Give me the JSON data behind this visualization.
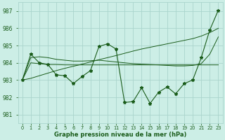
{
  "bg_color": "#cceee6",
  "line_color": "#1a5c1a",
  "grid_color": "#aad4cc",
  "xlabel": "Graphe pression niveau de la mer (hPa)",
  "ylim": [
    980.5,
    987.5
  ],
  "xlim": [
    -0.5,
    23.5
  ],
  "yticks": [
    981,
    982,
    983,
    984,
    985,
    986,
    987
  ],
  "xticks": [
    0,
    1,
    2,
    3,
    4,
    5,
    6,
    7,
    8,
    9,
    10,
    11,
    12,
    13,
    14,
    15,
    16,
    17,
    18,
    19,
    20,
    21,
    22,
    23
  ],
  "xtick_labels": [
    "0",
    "1",
    "2",
    "3",
    "4",
    "5",
    "6",
    "7",
    "8",
    "9",
    "10",
    "11",
    "12",
    "13",
    "14",
    "15",
    "16",
    "17",
    "18",
    "19",
    "20",
    "21",
    "22",
    "23"
  ],
  "main_y": [
    983.0,
    984.5,
    984.0,
    983.9,
    983.3,
    983.25,
    982.8,
    983.2,
    983.55,
    984.95,
    985.1,
    984.8,
    981.7,
    981.75,
    982.55,
    981.65,
    982.3,
    982.6,
    982.2,
    982.8,
    983.0,
    984.3,
    985.9,
    987.05
  ],
  "flat_line": [
    983.0,
    984.0,
    983.95,
    983.9,
    983.9,
    983.88,
    983.88,
    983.88,
    983.88,
    983.88,
    983.88,
    983.88,
    983.88,
    983.88,
    983.88,
    983.88,
    983.88,
    983.88,
    983.88,
    983.88,
    983.88,
    983.88,
    983.88,
    983.88
  ],
  "rising_line": [
    983.0,
    983.1,
    983.25,
    983.4,
    983.55,
    983.68,
    983.8,
    983.92,
    984.05,
    984.18,
    984.3,
    984.42,
    984.55,
    984.68,
    984.8,
    984.9,
    985.0,
    985.1,
    985.2,
    985.3,
    985.4,
    985.55,
    985.75,
    986.0
  ],
  "mid_line": [
    983.0,
    984.3,
    984.35,
    984.3,
    984.2,
    984.15,
    984.1,
    984.1,
    984.12,
    984.15,
    984.1,
    984.05,
    984.0,
    983.95,
    983.92,
    983.9,
    983.88,
    983.85,
    983.82,
    983.82,
    983.85,
    983.95,
    984.5,
    985.5
  ]
}
